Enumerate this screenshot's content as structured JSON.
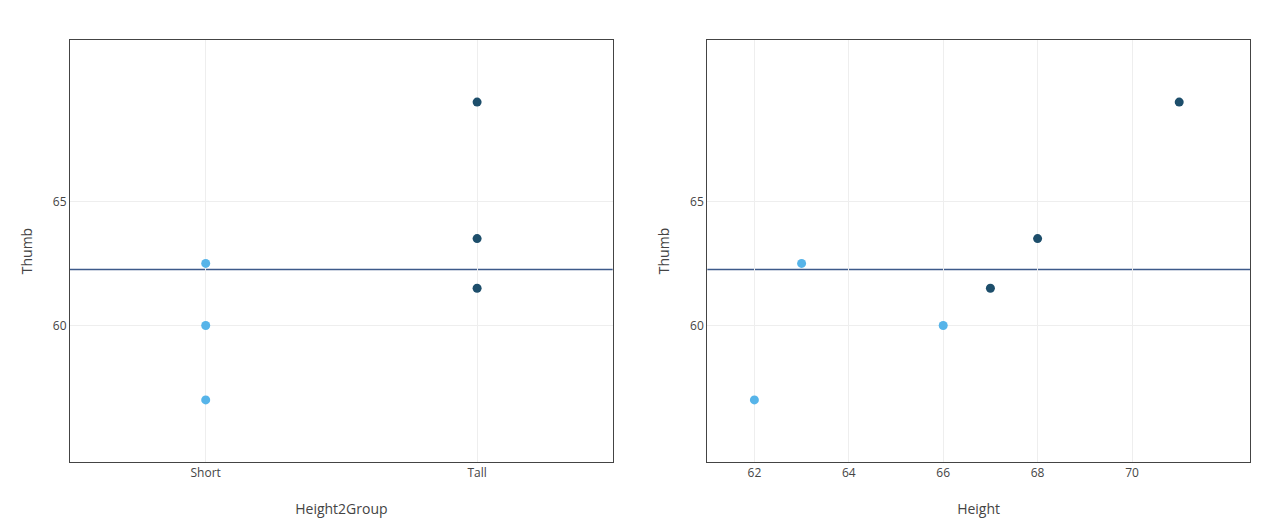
{
  "chart_data": [
    {
      "type": "scatter",
      "xlabel": "Height2Group",
      "ylabel": "Thumb",
      "series": [
        {
          "color": "#56B4E9",
          "x": [
            1,
            1,
            1
          ],
          "values": [
            62.5,
            60.0,
            57.0
          ]
        },
        {
          "color": "#1D4E6B",
          "x": [
            2,
            2,
            2
          ],
          "values": [
            69.0,
            63.5,
            61.5
          ]
        }
      ],
      "mean_line": {
        "value": 62.25,
        "color": "#3D5A8A"
      },
      "xlim": [
        0.5,
        2.5
      ],
      "xticks": [
        {
          "value": 1,
          "label": "Short"
        },
        {
          "value": 2,
          "label": "Tall"
        }
      ],
      "ylim": [
        54.5,
        71.5
      ],
      "yticks": [
        60,
        65
      ],
      "grid": true
    },
    {
      "type": "scatter",
      "xlabel": "Height",
      "ylabel": "Thumb",
      "series": [
        {
          "color": "#56B4E9",
          "x": [
            62,
            63,
            66
          ],
          "values": [
            57.0,
            62.5,
            60.0
          ]
        },
        {
          "color": "#1D4E6B",
          "x": [
            67,
            68,
            71
          ],
          "values": [
            61.5,
            63.5,
            69.0
          ]
        }
      ],
      "mean_line": {
        "value": 62.25,
        "color": "#3D5A8A"
      },
      "xlim": [
        61.0,
        72.5
      ],
      "xticks": [
        62,
        64,
        66,
        68,
        70
      ],
      "ylim": [
        54.5,
        71.5
      ],
      "yticks": [
        60,
        65
      ],
      "grid": true
    }
  ]
}
